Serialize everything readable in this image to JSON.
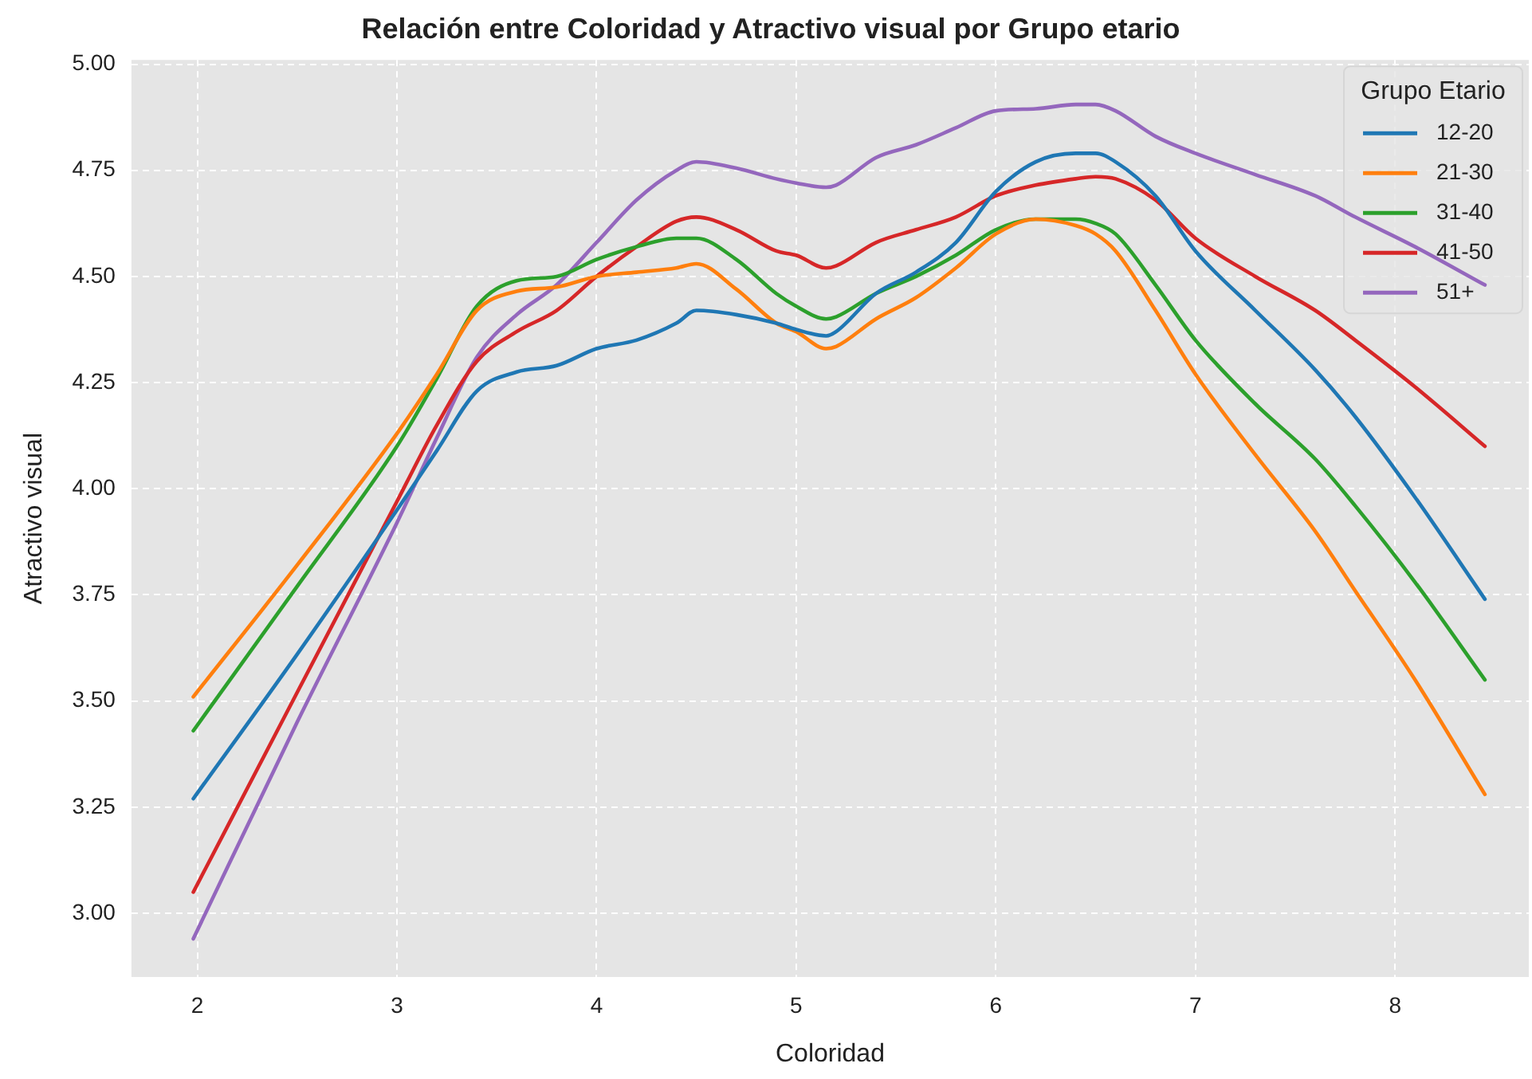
{
  "chart_data": {
    "type": "line",
    "title": "Relación entre Coloridad y Atractivo visual por Grupo etario",
    "xlabel": "Coloridad",
    "ylabel": "Atractivo visual",
    "legend_title": "Grupo Etario",
    "legend": "top right",
    "grid": true,
    "line_style": "solid",
    "marker": "none",
    "x": [
      1.98,
      2.5,
      3.0,
      3.2,
      3.4,
      3.6,
      3.8,
      4.0,
      4.2,
      4.4,
      4.5,
      4.7,
      4.9,
      5.0,
      5.15,
      5.2,
      5.4,
      5.6,
      5.8,
      6.0,
      6.2,
      6.4,
      6.5,
      6.6,
      6.8,
      7.0,
      7.3,
      7.6,
      7.8,
      8.1,
      8.45
    ],
    "xlim": [
      1.67,
      8.67
    ],
    "xticks": [
      2,
      3,
      4,
      5,
      6,
      7,
      8
    ],
    "ylim": [
      2.85,
      5.01
    ],
    "yticks": [
      {
        "value": 3,
        "label": "3.00"
      },
      {
        "value": 3.25,
        "label": "3.25"
      },
      {
        "value": 3.5,
        "label": "3.50"
      },
      {
        "value": 3.75,
        "label": "3.75"
      },
      {
        "value": 4,
        "label": "4.00"
      },
      {
        "value": 4.25,
        "label": "4.25"
      },
      {
        "value": 4.5,
        "label": "4.50"
      },
      {
        "value": 4.75,
        "label": "4.75"
      },
      {
        "value": 5,
        "label": "5.00"
      }
    ],
    "series": [
      {
        "name": "12-20",
        "color": "#1f77b4",
        "values": [
          3.27,
          3.61,
          3.95,
          4.09,
          4.23,
          4.275,
          4.29,
          4.33,
          4.35,
          4.39,
          4.42,
          4.41,
          4.39,
          4.375,
          4.36,
          4.37,
          4.46,
          4.51,
          4.58,
          4.7,
          4.77,
          4.79,
          4.79,
          4.77,
          4.69,
          4.56,
          4.42,
          4.28,
          4.17,
          3.98,
          3.74
        ]
      },
      {
        "name": "21-30",
        "color": "#ff7f0e",
        "values": [
          3.51,
          3.82,
          4.13,
          4.27,
          4.42,
          4.465,
          4.475,
          4.5,
          4.51,
          4.52,
          4.53,
          4.47,
          4.39,
          4.37,
          4.33,
          4.335,
          4.4,
          4.45,
          4.52,
          4.6,
          4.635,
          4.62,
          4.6,
          4.56,
          4.42,
          4.27,
          4.08,
          3.9,
          3.76,
          3.55,
          3.28
        ]
      },
      {
        "name": "31-40",
        "color": "#2ca02c",
        "values": [
          3.43,
          3.77,
          4.1,
          4.26,
          4.43,
          4.49,
          4.5,
          4.54,
          4.57,
          4.59,
          4.59,
          4.54,
          4.46,
          4.43,
          4.4,
          4.405,
          4.46,
          4.5,
          4.55,
          4.61,
          4.635,
          4.635,
          4.625,
          4.6,
          4.48,
          4.35,
          4.2,
          4.07,
          3.96,
          3.78,
          3.55
        ]
      },
      {
        "name": "41-50",
        "color": "#d62728",
        "values": [
          3.05,
          3.52,
          3.97,
          4.15,
          4.3,
          4.37,
          4.42,
          4.5,
          4.57,
          4.63,
          4.64,
          4.61,
          4.56,
          4.55,
          4.52,
          4.525,
          4.58,
          4.61,
          4.64,
          4.69,
          4.715,
          4.73,
          4.735,
          4.73,
          4.68,
          4.59,
          4.5,
          4.42,
          4.35,
          4.24,
          4.1
        ]
      },
      {
        "name": "51+",
        "color": "#9467bd",
        "values": [
          2.94,
          3.45,
          3.92,
          4.12,
          4.31,
          4.41,
          4.48,
          4.58,
          4.68,
          4.75,
          4.77,
          4.755,
          4.73,
          4.72,
          4.71,
          4.715,
          4.78,
          4.81,
          4.85,
          4.89,
          4.895,
          4.905,
          4.905,
          4.89,
          4.83,
          4.79,
          4.74,
          4.69,
          4.64,
          4.57,
          4.48
        ]
      }
    ]
  }
}
